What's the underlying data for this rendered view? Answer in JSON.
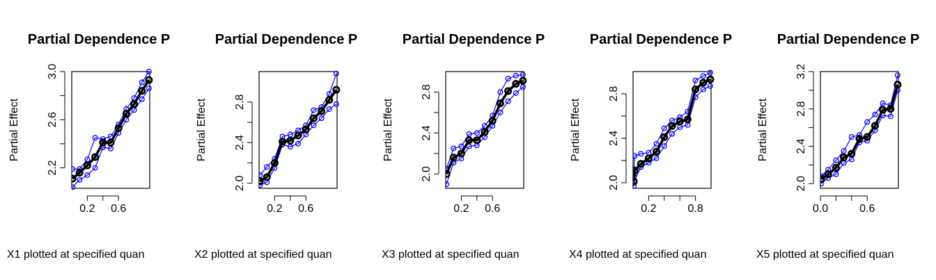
{
  "colors": {
    "mean_line": "#000000",
    "band_line": "#0000ff",
    "axis": "#000000",
    "background": "#ffffff"
  },
  "chart_data": [
    {
      "type": "line",
      "title": "Partial Dependence P",
      "xlabel": "X1 plotted at specified quan",
      "ylabel": "Partial Effect",
      "xlim": [
        0.0,
        1.0
      ],
      "ylim": [
        2.03,
        3.0
      ],
      "xticks": [
        0.2,
        0.6
      ],
      "xtick_labels": [
        "0.2",
        "0.6"
      ],
      "yticks": [
        2.2,
        2.6,
        3.0
      ],
      "ytick_labels": [
        "2.2",
        "2.6",
        "3.0"
      ],
      "x": [
        0.01,
        0.1,
        0.2,
        0.3,
        0.4,
        0.5,
        0.6,
        0.7,
        0.8,
        0.9,
        0.99
      ],
      "series": [
        {
          "role": "mean",
          "values": [
            2.11,
            2.16,
            2.22,
            2.29,
            2.41,
            2.41,
            2.53,
            2.65,
            2.73,
            2.84,
            2.93
          ]
        },
        {
          "role": "upper",
          "values": [
            2.19,
            2.19,
            2.27,
            2.45,
            2.44,
            2.46,
            2.56,
            2.69,
            2.78,
            2.91,
            3.0
          ]
        },
        {
          "role": "lower",
          "values": [
            2.04,
            2.1,
            2.14,
            2.2,
            2.37,
            2.36,
            2.49,
            2.6,
            2.68,
            2.77,
            2.86
          ]
        }
      ]
    },
    {
      "type": "line",
      "title": "Partial Dependence P",
      "xlabel": "X2 plotted at specified quan",
      "ylabel": "Partial Effect",
      "xlim": [
        0.0,
        1.0
      ],
      "ylim": [
        1.95,
        3.1
      ],
      "xticks": [
        0.2,
        0.6
      ],
      "xtick_labels": [
        "0.2",
        "0.6"
      ],
      "yticks": [
        2.0,
        2.4,
        2.8
      ],
      "ytick_labels": [
        "2.0",
        "2.4",
        "2.8"
      ],
      "x": [
        0.01,
        0.1,
        0.2,
        0.3,
        0.4,
        0.5,
        0.6,
        0.7,
        0.8,
        0.9,
        0.99
      ],
      "series": [
        {
          "role": "mean",
          "values": [
            2.02,
            2.06,
            2.2,
            2.41,
            2.42,
            2.47,
            2.53,
            2.64,
            2.71,
            2.82,
            2.92
          ]
        },
        {
          "role": "upper",
          "values": [
            2.08,
            2.16,
            2.24,
            2.46,
            2.48,
            2.52,
            2.57,
            2.72,
            2.75,
            2.88,
            3.08
          ]
        },
        {
          "role": "lower",
          "values": [
            1.98,
            2.01,
            2.15,
            2.38,
            2.36,
            2.39,
            2.48,
            2.57,
            2.64,
            2.73,
            2.78
          ]
        }
      ]
    },
    {
      "type": "line",
      "title": "Partial Dependence P",
      "xlabel": "X3 plotted at specified quan",
      "ylabel": "Partial Effect",
      "xlim": [
        0.0,
        1.0
      ],
      "ylim": [
        1.86,
        3.0
      ],
      "xticks": [
        0.2,
        0.6
      ],
      "xtick_labels": [
        "0.2",
        "0.6"
      ],
      "yticks": [
        2.0,
        2.4,
        2.8
      ],
      "ytick_labels": [
        "2.0",
        "2.4",
        "2.8"
      ],
      "x": [
        0.01,
        0.1,
        0.2,
        0.3,
        0.4,
        0.5,
        0.6,
        0.7,
        0.8,
        0.9,
        0.99
      ],
      "series": [
        {
          "role": "mean",
          "values": [
            2.0,
            2.16,
            2.2,
            2.33,
            2.33,
            2.41,
            2.52,
            2.69,
            2.81,
            2.88,
            2.91
          ]
        },
        {
          "role": "upper",
          "values": [
            2.05,
            2.25,
            2.27,
            2.39,
            2.4,
            2.47,
            2.57,
            2.8,
            2.93,
            2.96,
            2.97
          ]
        },
        {
          "role": "lower",
          "values": [
            1.9,
            2.11,
            2.15,
            2.27,
            2.28,
            2.36,
            2.47,
            2.6,
            2.71,
            2.79,
            2.85
          ]
        }
      ]
    },
    {
      "type": "line",
      "title": "Partial Dependence P",
      "xlabel": "X4 plotted at specified quan",
      "ylabel": "Partial Effect",
      "xlim": [
        0.0,
        1.0
      ],
      "ylim": [
        1.95,
        3.0
      ],
      "xticks": [
        0.2,
        0.8
      ],
      "xtick_labels": [
        "0.2",
        "0.8"
      ],
      "yticks": [
        2.0,
        2.4,
        2.8
      ],
      "ytick_labels": [
        "2.0",
        "2.4",
        "2.8"
      ],
      "x": [
        0.01,
        0.02,
        0.1,
        0.2,
        0.3,
        0.4,
        0.5,
        0.6,
        0.7,
        0.8,
        0.9,
        0.99
      ],
      "series": [
        {
          "role": "mean",
          "values": [
            2.01,
            2.11,
            2.17,
            2.22,
            2.28,
            2.41,
            2.51,
            2.55,
            2.57,
            2.84,
            2.9,
            2.93
          ]
        },
        {
          "role": "upper",
          "values": [
            2.07,
            2.24,
            2.26,
            2.27,
            2.35,
            2.49,
            2.56,
            2.59,
            2.64,
            2.92,
            2.96,
            2.99
          ]
        },
        {
          "role": "lower",
          "values": [
            1.97,
            2.02,
            2.14,
            2.18,
            2.22,
            2.33,
            2.44,
            2.5,
            2.52,
            2.77,
            2.84,
            2.87
          ]
        }
      ]
    },
    {
      "type": "line",
      "title": "Partial Dependence P",
      "xlabel": "X5 plotted at specified quan",
      "ylabel": "Partial Effect",
      "xlim": [
        0.0,
        1.0
      ],
      "ylim": [
        1.95,
        3.2
      ],
      "xticks": [
        0.0,
        0.6
      ],
      "xtick_labels": [
        "0.0",
        "0.6"
      ],
      "yticks": [
        2.0,
        2.4,
        2.8,
        3.2
      ],
      "ytick_labels": [
        "2.0",
        "2.4",
        "2.8",
        "3.2"
      ],
      "x": [
        0.01,
        0.1,
        0.2,
        0.3,
        0.4,
        0.5,
        0.6,
        0.7,
        0.8,
        0.9,
        0.99
      ],
      "series": [
        {
          "role": "mean",
          "values": [
            2.05,
            2.1,
            2.17,
            2.28,
            2.32,
            2.48,
            2.5,
            2.62,
            2.79,
            2.8,
            3.06
          ]
        },
        {
          "role": "upper",
          "values": [
            2.08,
            2.15,
            2.25,
            2.35,
            2.5,
            2.52,
            2.66,
            2.74,
            2.86,
            2.84,
            3.16
          ]
        },
        {
          "role": "lower",
          "values": [
            2.0,
            2.06,
            2.1,
            2.22,
            2.26,
            2.44,
            2.46,
            2.57,
            2.73,
            2.72,
            3.0
          ]
        }
      ]
    }
  ]
}
